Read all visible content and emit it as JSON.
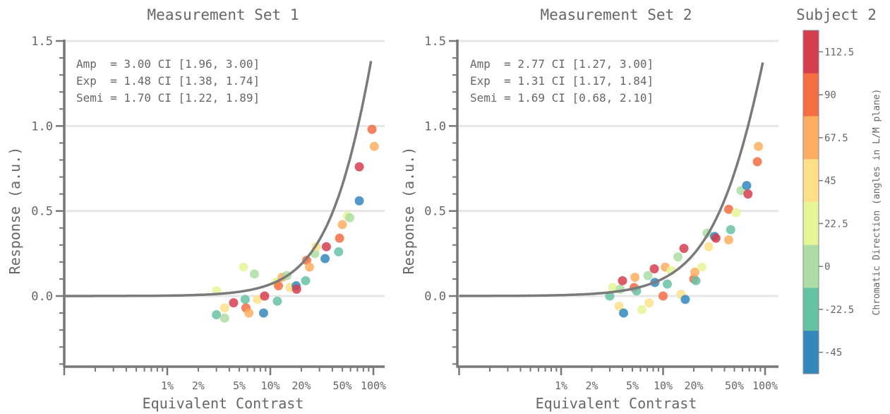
{
  "figure": {
    "legend_title": "Subject 2"
  },
  "chart_data": [
    {
      "type": "scatter",
      "title": "Measurement Set 1",
      "xlabel": "Equivalent Contrast",
      "ylabel": "Response (a.u.)",
      "x_scale": "log",
      "xlim": [
        0.001,
        1.2
      ],
      "ylim": [
        -0.4,
        1.5
      ],
      "x_tick_labels": [
        {
          "v": 0.01,
          "label": "1%"
        },
        {
          "v": 0.02,
          "label": "2%"
        },
        {
          "v": 0.05,
          "label": "5%"
        },
        {
          "v": 0.1,
          "label": "10%"
        },
        {
          "v": 0.2,
          "label": "20%"
        },
        {
          "v": 0.5,
          "label": "50%"
        },
        {
          "v": 1.0,
          "label": "100%"
        }
      ],
      "y_tick_labels": [
        {
          "v": 0.0,
          "label": "0.0"
        },
        {
          "v": 0.5,
          "label": "0.5"
        },
        {
          "v": 1.0,
          "label": "1.0"
        },
        {
          "v": 1.5,
          "label": "1.5"
        }
      ],
      "grid": "horizontal",
      "annotations": [
        "Amp  = 3.00 CI [1.96, 3.00]",
        "Exp  = 1.48 CI [1.38, 1.74]",
        "Semi = 1.70 CI [1.22, 1.89]"
      ],
      "fit_curve": {
        "amp": 3.0,
        "exp": 1.48,
        "semi": 1.7,
        "color": "#7a7a7a"
      },
      "points": [
        {
          "x": 0.03,
          "y": 0.03,
          "c": 22.5
        },
        {
          "x": 0.03,
          "y": -0.11,
          "c": -22.5
        },
        {
          "x": 0.036,
          "y": -0.07,
          "c": 45
        },
        {
          "x": 0.036,
          "y": -0.13,
          "c": 0
        },
        {
          "x": 0.044,
          "y": -0.04,
          "c": 112.5
        },
        {
          "x": 0.055,
          "y": 0.17,
          "c": 22.5
        },
        {
          "x": 0.057,
          "y": -0.02,
          "c": -22.5
        },
        {
          "x": 0.058,
          "y": -0.07,
          "c": 90
        },
        {
          "x": 0.062,
          "y": -0.1,
          "c": 67.5
        },
        {
          "x": 0.07,
          "y": 0.13,
          "c": 0
        },
        {
          "x": 0.075,
          "y": -0.02,
          "c": 45
        },
        {
          "x": 0.086,
          "y": -0.1,
          "c": -45
        },
        {
          "x": 0.088,
          "y": 0.0,
          "c": 112.5
        },
        {
          "x": 0.113,
          "y": 0.08,
          "c": 22.5
        },
        {
          "x": 0.117,
          "y": -0.03,
          "c": -22.5
        },
        {
          "x": 0.12,
          "y": 0.06,
          "c": 90
        },
        {
          "x": 0.13,
          "y": 0.11,
          "c": 67.5
        },
        {
          "x": 0.145,
          "y": 0.12,
          "c": 0
        },
        {
          "x": 0.155,
          "y": 0.05,
          "c": 45
        },
        {
          "x": 0.178,
          "y": 0.06,
          "c": -45
        },
        {
          "x": 0.18,
          "y": 0.04,
          "c": 112.5
        },
        {
          "x": 0.22,
          "y": 0.09,
          "c": -22.5
        },
        {
          "x": 0.225,
          "y": 0.21,
          "c": 90
        },
        {
          "x": 0.24,
          "y": 0.17,
          "c": 67.5
        },
        {
          "x": 0.27,
          "y": 0.25,
          "c": 0
        },
        {
          "x": 0.28,
          "y": 0.29,
          "c": 45
        },
        {
          "x": 0.34,
          "y": 0.22,
          "c": -45
        },
        {
          "x": 0.35,
          "y": 0.29,
          "c": 112.5
        },
        {
          "x": 0.46,
          "y": 0.26,
          "c": -22.5
        },
        {
          "x": 0.47,
          "y": 0.34,
          "c": 90
        },
        {
          "x": 0.5,
          "y": 0.42,
          "c": 67.5
        },
        {
          "x": 0.56,
          "y": 0.47,
          "c": 22.5
        },
        {
          "x": 0.59,
          "y": 0.46,
          "c": 0
        },
        {
          "x": 0.73,
          "y": 0.56,
          "c": -45
        },
        {
          "x": 0.73,
          "y": 0.76,
          "c": 112.5
        },
        {
          "x": 0.97,
          "y": 0.98,
          "c": 90
        },
        {
          "x": 1.02,
          "y": 0.88,
          "c": 67.5
        }
      ]
    },
    {
      "type": "scatter",
      "title": "Measurement Set 2",
      "xlabel": "Equivalent Contrast",
      "ylabel": "Response (a.u.)",
      "x_scale": "log",
      "xlim": [
        0.001,
        1.2
      ],
      "ylim": [
        -0.4,
        1.5
      ],
      "x_tick_labels": [
        {
          "v": 0.01,
          "label": "1%"
        },
        {
          "v": 0.02,
          "label": "2%"
        },
        {
          "v": 0.05,
          "label": "5%"
        },
        {
          "v": 0.1,
          "label": "10%"
        },
        {
          "v": 0.2,
          "label": "20%"
        },
        {
          "v": 0.5,
          "label": "50%"
        },
        {
          "v": 1.0,
          "label": "100%"
        }
      ],
      "y_tick_labels": [
        {
          "v": 0.0,
          "label": "0.0"
        },
        {
          "v": 0.5,
          "label": "0.5"
        },
        {
          "v": 1.0,
          "label": "1.0"
        },
        {
          "v": 1.5,
          "label": "1.5"
        }
      ],
      "grid": "horizontal",
      "annotations": [
        "Amp  = 2.77 CI [1.27, 3.00]",
        "Exp  = 1.31 CI [1.17, 1.84]",
        "Semi = 1.69 CI [0.68, 2.10]"
      ],
      "fit_curve": {
        "amp": 2.77,
        "exp": 1.31,
        "semi": 1.69,
        "color": "#7a7a7a"
      },
      "points": [
        {
          "x": 0.03,
          "y": 0.0,
          "c": -22.5
        },
        {
          "x": 0.032,
          "y": 0.05,
          "c": 22.5
        },
        {
          "x": 0.037,
          "y": -0.06,
          "c": 45
        },
        {
          "x": 0.038,
          "y": 0.04,
          "c": 0
        },
        {
          "x": 0.04,
          "y": 0.09,
          "c": 112.5
        },
        {
          "x": 0.041,
          "y": -0.1,
          "c": -45
        },
        {
          "x": 0.052,
          "y": 0.05,
          "c": 90
        },
        {
          "x": 0.053,
          "y": 0.11,
          "c": 67.5
        },
        {
          "x": 0.055,
          "y": 0.03,
          "c": -22.5
        },
        {
          "x": 0.062,
          "y": -0.08,
          "c": 22.5
        },
        {
          "x": 0.071,
          "y": 0.12,
          "c": 0
        },
        {
          "x": 0.073,
          "y": -0.04,
          "c": 45
        },
        {
          "x": 0.082,
          "y": 0.16,
          "c": 112.5
        },
        {
          "x": 0.083,
          "y": 0.08,
          "c": -45
        },
        {
          "x": 0.1,
          "y": 0.0,
          "c": 90
        },
        {
          "x": 0.105,
          "y": 0.17,
          "c": 67.5
        },
        {
          "x": 0.11,
          "y": 0.07,
          "c": -22.5
        },
        {
          "x": 0.12,
          "y": 0.15,
          "c": 22.5
        },
        {
          "x": 0.14,
          "y": 0.23,
          "c": 0
        },
        {
          "x": 0.15,
          "y": 0.01,
          "c": 45
        },
        {
          "x": 0.16,
          "y": 0.28,
          "c": 112.5
        },
        {
          "x": 0.165,
          "y": -0.02,
          "c": -45
        },
        {
          "x": 0.2,
          "y": 0.1,
          "c": 90
        },
        {
          "x": 0.205,
          "y": 0.14,
          "c": 67.5
        },
        {
          "x": 0.21,
          "y": 0.09,
          "c": -22.5
        },
        {
          "x": 0.24,
          "y": 0.17,
          "c": 22.5
        },
        {
          "x": 0.27,
          "y": 0.37,
          "c": 0
        },
        {
          "x": 0.28,
          "y": 0.29,
          "c": 45
        },
        {
          "x": 0.32,
          "y": 0.35,
          "c": -45
        },
        {
          "x": 0.33,
          "y": 0.34,
          "c": 112.5
        },
        {
          "x": 0.44,
          "y": 0.51,
          "c": 90
        },
        {
          "x": 0.44,
          "y": 0.33,
          "c": 67.5
        },
        {
          "x": 0.46,
          "y": 0.39,
          "c": -22.5
        },
        {
          "x": 0.52,
          "y": 0.49,
          "c": 22.5
        },
        {
          "x": 0.58,
          "y": 0.62,
          "c": 0
        },
        {
          "x": 0.66,
          "y": 0.65,
          "c": -45
        },
        {
          "x": 0.68,
          "y": 0.6,
          "c": 112.5
        },
        {
          "x": 0.84,
          "y": 0.79,
          "c": 90
        },
        {
          "x": 0.86,
          "y": 0.88,
          "c": 67.5
        }
      ]
    }
  ],
  "colorbar": {
    "label": "Chromatic Direction (angles in L/M plane)",
    "ticks": [
      "112.5",
      "90",
      "67.5",
      "45",
      "22.5",
      "0",
      "-22.5",
      "-45"
    ],
    "tick_values": [
      112.5,
      90,
      67.5,
      45,
      22.5,
      0,
      -22.5,
      -45
    ],
    "colors": [
      "#d53e4f",
      "#f46d43",
      "#fdae61",
      "#fee08b",
      "#e6f598",
      "#abdda4",
      "#66c2a5",
      "#3288bd"
    ]
  }
}
